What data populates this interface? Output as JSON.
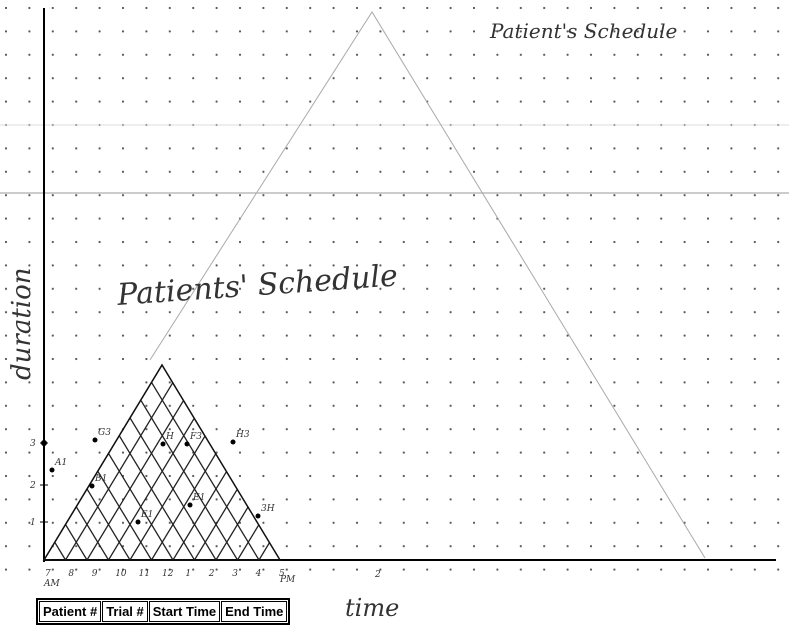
{
  "titles": {
    "top": "Patient's Schedule",
    "middle": "Patients' Schedule"
  },
  "axes": {
    "y_label": "duration",
    "x_label": "time",
    "x_ticks": [
      "7",
      "8",
      "9",
      "10",
      "11",
      "12",
      "1",
      "2",
      "3",
      "4",
      "5"
    ],
    "am": "AM",
    "pm": "PM",
    "x_extra": "2",
    "y_ticks": [
      "1",
      "2",
      "3"
    ]
  },
  "points": [
    {
      "label": "A1"
    },
    {
      "label": "B1"
    },
    {
      "label": "G3"
    },
    {
      "label": "E1"
    },
    {
      "label": "F3"
    },
    {
      "label": "H3"
    },
    {
      "label": "H"
    },
    {
      "label": "E1"
    },
    {
      "label": "3H"
    }
  ],
  "table": {
    "header": [
      "Patient #",
      "Trial #",
      "Start Time",
      "End Time"
    ]
  }
}
